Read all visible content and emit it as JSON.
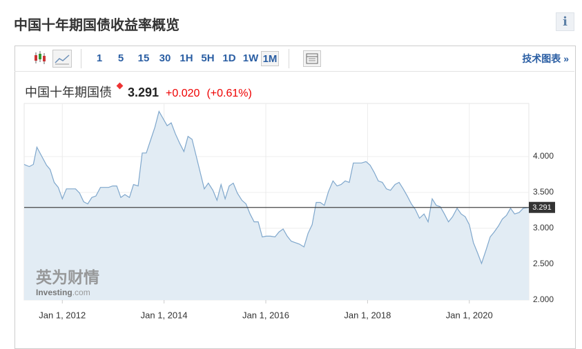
{
  "header": {
    "title": "中国十年期国债收益率概览",
    "info": "i"
  },
  "toolbar": {
    "intervals": [
      "1",
      "5",
      "15",
      "30",
      "1H",
      "5H",
      "1D",
      "1W",
      "1M"
    ],
    "selected_index": 8,
    "tech_link": "技术图表 »"
  },
  "quote": {
    "name": "中国十年期国债",
    "change": "+0.020",
    "change_pct": "(+0.61%)"
  },
  "watermark": {
    "cn": "英为财情",
    "en": "Investing",
    "domain": ".com"
  },
  "chart_data": {
    "type": "line",
    "color": "#7fa7cc",
    "fill": "#e2ecf4",
    "x": [
      2011.25,
      2011.35,
      2011.43,
      2011.5,
      2011.59,
      2011.69,
      2011.76,
      2011.84,
      2011.92,
      2012.0,
      2012.08,
      2012.18,
      2012.26,
      2012.34,
      2012.42,
      2012.5,
      2012.58,
      2012.66,
      2012.75,
      2012.83,
      2012.91,
      2012.99,
      2013.07,
      2013.15,
      2013.23,
      2013.32,
      2013.4,
      2013.49,
      2013.57,
      2013.65,
      2013.74,
      2013.82,
      2013.9,
      2013.98,
      2014.06,
      2014.14,
      2014.22,
      2014.31,
      2014.39,
      2014.47,
      2014.55,
      2014.63,
      2014.71,
      2014.79,
      2014.87,
      2014.96,
      2015.04,
      2015.12,
      2015.2,
      2015.28,
      2015.36,
      2015.44,
      2015.53,
      2015.61,
      2015.69,
      2015.77,
      2015.85,
      2015.93,
      2016.01,
      2016.09,
      2016.18,
      2016.26,
      2016.34,
      2016.42,
      2016.5,
      2016.58,
      2016.66,
      2016.75,
      2016.83,
      2016.91,
      2016.99,
      2017.07,
      2017.15,
      2017.23,
      2017.32,
      2017.4,
      2017.48,
      2017.56,
      2017.64,
      2017.72,
      2017.8,
      2017.88,
      2017.97,
      2018.05,
      2018.13,
      2018.21,
      2018.29,
      2018.37,
      2018.45,
      2018.54,
      2018.62,
      2018.7,
      2018.78,
      2018.86,
      2018.94,
      2019.02,
      2019.11,
      2019.19,
      2019.27,
      2019.35,
      2019.43,
      2019.51,
      2019.59,
      2019.67,
      2019.76,
      2019.84,
      2019.92,
      2020.0,
      2020.08,
      2020.16,
      2020.24,
      2020.33,
      2020.41,
      2020.49,
      2020.57,
      2020.65,
      2020.73,
      2020.81,
      2020.89,
      2020.98,
      2021.06,
      2021.17
    ],
    "values": [
      3.89,
      3.86,
      3.89,
      4.13,
      4.01,
      3.88,
      3.82,
      3.64,
      3.57,
      3.41,
      3.55,
      3.55,
      3.55,
      3.49,
      3.37,
      3.34,
      3.43,
      3.45,
      3.57,
      3.57,
      3.57,
      3.59,
      3.59,
      3.43,
      3.47,
      3.43,
      3.61,
      3.59,
      4.05,
      4.05,
      4.24,
      4.41,
      4.63,
      4.53,
      4.43,
      4.47,
      4.32,
      4.18,
      4.07,
      4.28,
      4.24,
      4.01,
      3.78,
      3.55,
      3.63,
      3.53,
      3.39,
      3.61,
      3.41,
      3.59,
      3.63,
      3.49,
      3.39,
      3.34,
      3.2,
      3.09,
      3.09,
      2.88,
      2.89,
      2.89,
      2.88,
      2.95,
      2.99,
      2.89,
      2.82,
      2.8,
      2.78,
      2.74,
      2.93,
      3.05,
      3.36,
      3.36,
      3.32,
      3.51,
      3.66,
      3.59,
      3.61,
      3.66,
      3.64,
      3.91,
      3.91,
      3.91,
      3.93,
      3.88,
      3.78,
      3.66,
      3.64,
      3.55,
      3.53,
      3.61,
      3.64,
      3.55,
      3.45,
      3.34,
      3.26,
      3.14,
      3.2,
      3.09,
      3.41,
      3.32,
      3.3,
      3.2,
      3.09,
      3.16,
      3.28,
      3.2,
      3.16,
      3.05,
      2.8,
      2.66,
      2.51,
      2.7,
      2.88,
      2.95,
      3.03,
      3.13,
      3.18,
      3.28,
      3.2,
      3.22,
      3.28,
      3.29
    ],
    "last_value": 3.291,
    "xlim": [
      2011.25,
      2021.17
    ],
    "xticks": [
      {
        "value": 2012,
        "label": "Jan 1, 2012"
      },
      {
        "value": 2014,
        "label": "Jan 1, 2014"
      },
      {
        "value": 2016,
        "label": "Jan 1, 2016"
      },
      {
        "value": 2018,
        "label": "Jan 1, 2018"
      },
      {
        "value": 2020,
        "label": "Jan 1, 2020"
      }
    ],
    "ylim": [
      2,
      4.74
    ],
    "yticks": [
      {
        "value": 2,
        "label": "2.000"
      },
      {
        "value": 2.5,
        "label": "2.500"
      },
      {
        "value": 3,
        "label": "3.000"
      },
      {
        "value": 3.5,
        "label": "3.500"
      },
      {
        "value": 4,
        "label": "4.000"
      }
    ],
    "grid": true
  }
}
